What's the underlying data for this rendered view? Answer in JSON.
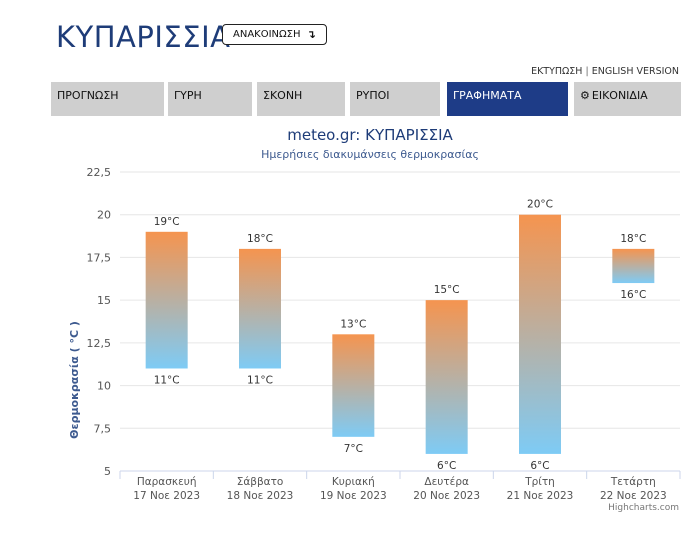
{
  "header": {
    "city": "ΚΥΠΑΡΙΣΣΙΑ",
    "announce_label": "ΑΝΑΚΟΙΝΩΣΗ",
    "print_label": "ΕΚΤΥΠΩΣΗ",
    "separator": "|",
    "english_label": "ENGLISH VERSION"
  },
  "tabs": [
    {
      "label": "ΠΡΟΓΝΩΣΗ",
      "active": false
    },
    {
      "label": "ΓΥΡΗ",
      "active": false
    },
    {
      "label": "ΣΚΟΝΗ",
      "active": false
    },
    {
      "label": "ΡΥΠΟΙ",
      "active": false
    },
    {
      "label": "ΓΡΑΦΗΜΑΤΑ",
      "active": true
    },
    {
      "label": "ΕΙΚΟΝΙΔΙΑ",
      "active": false
    }
  ],
  "colors": {
    "title_blue": "#1e3c78",
    "tab_active": "#1e3c87",
    "tab_inactive": "#cfcfcf",
    "bar_top": "#f5944f",
    "bar_bottom": "#7ecbf5",
    "axis_title": "#3d5a8f"
  },
  "chart_data": {
    "type": "bar",
    "subtype": "columnrange",
    "title": "meteo.gr: ΚΥΠΑΡΙΣΣΙΑ",
    "subtitle": "Ημερήσιες διακυμάνσεις θερμοκρασίας",
    "ylabel": "Θερμοκρασία ( °C )",
    "ylim": [
      5,
      22.5
    ],
    "yticks": [
      "5",
      "7,5",
      "10",
      "12,5",
      "15",
      "17,5",
      "20",
      "22,5"
    ],
    "ytick_values": [
      5,
      7.5,
      10,
      12.5,
      15,
      17.5,
      20,
      22.5
    ],
    "grid": true,
    "categories": [
      {
        "day": "Παρασκευή",
        "date": "17 Νοε 2023"
      },
      {
        "day": "Σάββατο",
        "date": "18 Νοε 2023"
      },
      {
        "day": "Κυριακή",
        "date": "19 Νοε 2023"
      },
      {
        "day": "Δευτέρα",
        "date": "20 Νοε 2023"
      },
      {
        "day": "Τρίτη",
        "date": "21 Νοε 2023"
      },
      {
        "day": "Τετάρτη",
        "date": "22 Νοε 2023"
      }
    ],
    "low": [
      11,
      11,
      7,
      6,
      6,
      16
    ],
    "high": [
      19,
      18,
      13,
      15,
      20,
      18
    ],
    "low_labels": [
      "11°C",
      "11°C",
      "7°C",
      "6°C",
      "6°C",
      "16°C"
    ],
    "high_labels": [
      "19°C",
      "18°C",
      "13°C",
      "15°C",
      "20°C",
      "18°C"
    ]
  },
  "credit": "Highcharts.com"
}
